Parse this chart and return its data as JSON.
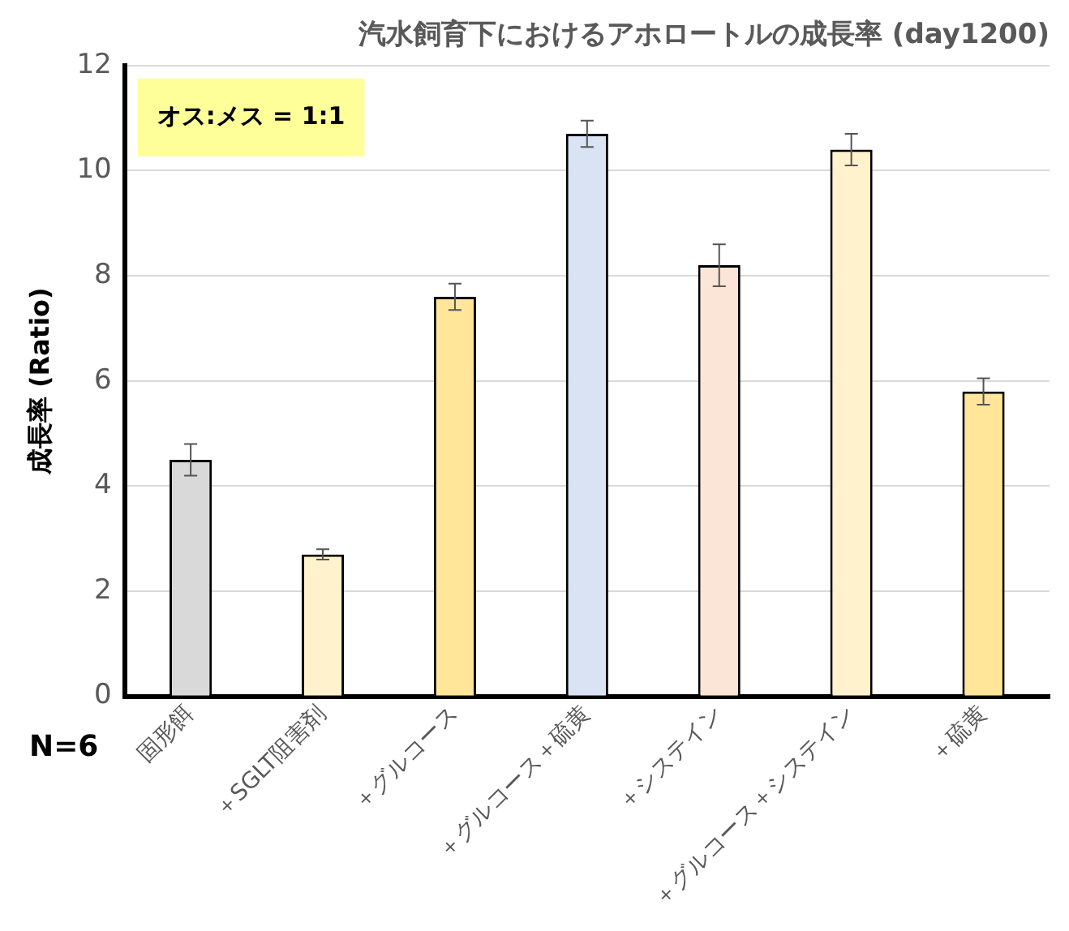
{
  "chart_data": {
    "type": "bar",
    "title": "汽水飼育下におけるアホロートルの成長率 (day1200)",
    "ylabel": "成長率 (Ratio)",
    "categories": [
      "固形餌",
      "＋SGLT阻害剤",
      "＋グルコース",
      "＋グルコース＋硫黄",
      "＋システイン",
      "＋グルコース＋システイン",
      "＋硫黄"
    ],
    "values": [
      4.5,
      2.7,
      7.6,
      10.7,
      8.2,
      10.4,
      5.8
    ],
    "errors": [
      0.3,
      0.1,
      0.25,
      0.25,
      0.4,
      0.3,
      0.25
    ],
    "colors": [
      "#d9d9d9",
      "#fff2cc",
      "#ffe699",
      "#dae3f3",
      "#fbe5d6",
      "#fff2cc",
      "#ffe699"
    ],
    "ylim": [
      0,
      12
    ],
    "yticks": [
      0,
      2,
      4,
      6,
      8,
      10,
      12
    ],
    "grid": "y",
    "legend": false,
    "annotations": [
      "オス:メス = 1:1",
      "N=6"
    ]
  }
}
